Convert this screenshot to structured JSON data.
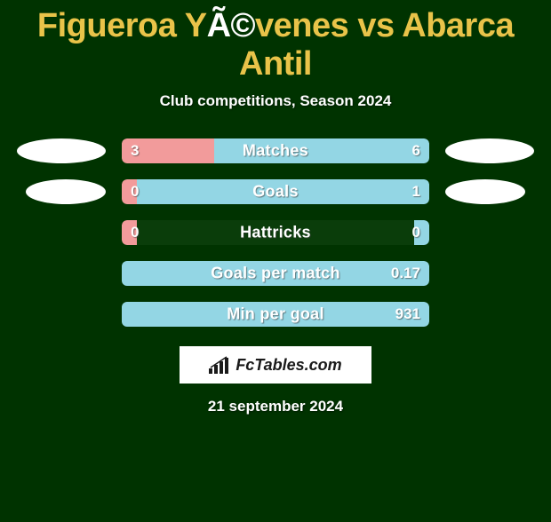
{
  "title_parts": {
    "p1": "Figueroa Y",
    "p2": "Ã©",
    "p3": "venes vs Abarca Antil"
  },
  "title_colors": {
    "main": "#e9c349",
    "alt": "#ffffff"
  },
  "subtitle": "Club competitions, Season 2024",
  "date": "21 september 2024",
  "bar_bg": "#0a3d0a",
  "fill_left_color": "#f29b9b",
  "fill_right_color": "#93d6e4",
  "avatar_left_bg": "#ffffff",
  "avatar_right_bg": "#ffffff",
  "stats": [
    {
      "label": "Matches",
      "left_val": "3",
      "right_val": "6",
      "left_pct": 30,
      "right_pct": 70,
      "show_avatars": true
    },
    {
      "label": "Goals",
      "left_val": "0",
      "right_val": "1",
      "left_pct": 5,
      "right_pct": 95,
      "show_avatars": true
    },
    {
      "label": "Hattricks",
      "left_val": "0",
      "right_val": "0",
      "left_pct": 5,
      "right_pct": 5,
      "show_avatars": false
    },
    {
      "label": "Goals per match",
      "left_val": "",
      "right_val": "0.17",
      "left_pct": 0,
      "right_pct": 100,
      "show_avatars": false
    },
    {
      "label": "Min per goal",
      "left_val": "",
      "right_val": "931",
      "left_pct": 0,
      "right_pct": 100,
      "show_avatars": false
    }
  ],
  "brand": "FcTables.com"
}
